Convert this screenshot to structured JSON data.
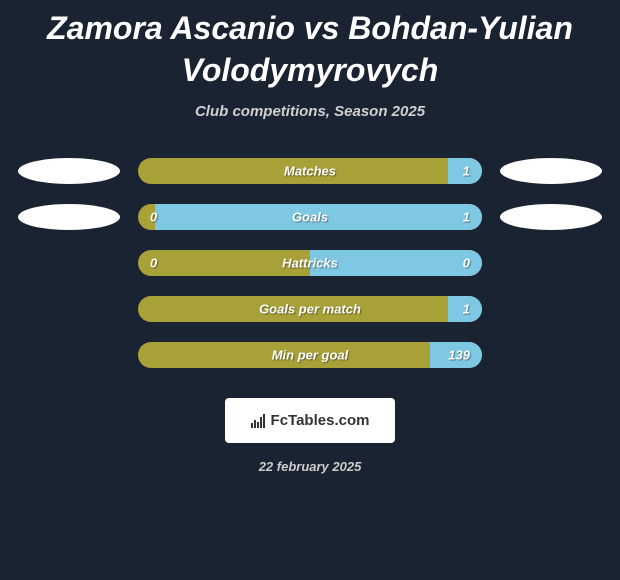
{
  "title": "Zamora Ascanio vs Bohdan-Yulian Volodymyrovych",
  "subtitle": "Club competitions, Season 2025",
  "colors": {
    "background": "#1a2332",
    "olive": "#a8a138",
    "lightblue": "#7ec8e3",
    "text": "#ffffff",
    "brand_bg": "#ffffff",
    "brand_text": "#333333"
  },
  "stats": [
    {
      "label": "Matches",
      "left_value": "",
      "right_value": "1",
      "show_left_value": false,
      "left_color": "#a8a138",
      "right_color": "#7ec8e3",
      "right_width_pct": 10,
      "show_left_ellipse": true,
      "show_right_ellipse": true
    },
    {
      "label": "Goals",
      "left_value": "0",
      "right_value": "1",
      "show_left_value": true,
      "left_color": "#a8a138",
      "right_color": "#7ec8e3",
      "right_width_pct": 95,
      "show_left_ellipse": true,
      "show_right_ellipse": true
    },
    {
      "label": "Hattricks",
      "left_value": "0",
      "right_value": "0",
      "show_left_value": true,
      "left_color": "#a8a138",
      "right_color": "#7ec8e3",
      "right_width_pct": 50,
      "show_left_ellipse": false,
      "show_right_ellipse": false
    },
    {
      "label": "Goals per match",
      "left_value": "",
      "right_value": "1",
      "show_left_value": false,
      "left_color": "#a8a138",
      "right_color": "#7ec8e3",
      "right_width_pct": 10,
      "show_left_ellipse": false,
      "show_right_ellipse": false
    },
    {
      "label": "Min per goal",
      "left_value": "",
      "right_value": "139",
      "show_left_value": false,
      "left_color": "#a8a138",
      "right_color": "#7ec8e3",
      "right_width_pct": 15,
      "show_left_ellipse": false,
      "show_right_ellipse": false
    }
  ],
  "brand": "FcTables.com",
  "date": "22 february 2025"
}
